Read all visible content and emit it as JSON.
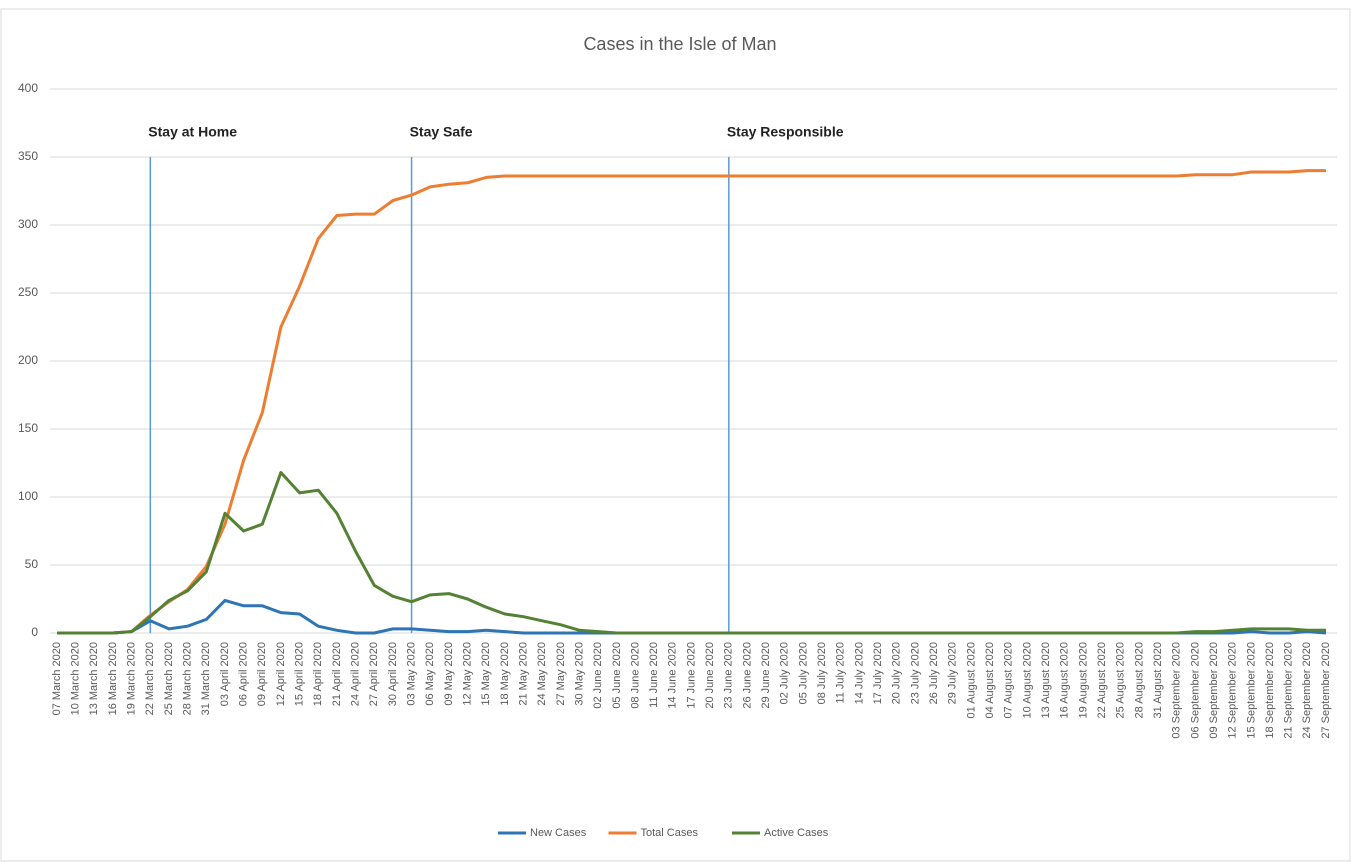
{
  "chart_data": {
    "type": "line",
    "title": "Cases in the Isle of Man",
    "categories": [
      "07 March 2020",
      "10 March 2020",
      "13 March 2020",
      "16 March 2020",
      "19 March 2020",
      "22 March 2020",
      "25 March 2020",
      "28 March 2020",
      "31 March 2020",
      "03 April 2020",
      "06 April 2020",
      "09 April 2020",
      "12 April 2020",
      "15 April 2020",
      "18 April 2020",
      "21 April 2020",
      "24 April 2020",
      "27 April 2020",
      "30 April 2020",
      "03 May 2020",
      "06 May 2020",
      "09 May 2020",
      "12 May 2020",
      "15 May 2020",
      "18 May 2020",
      "21 May 2020",
      "24 May 2020",
      "27 May 2020",
      "30 May 2020",
      "02 June 2020",
      "05 June 2020",
      "08 June 2020",
      "11 June 2020",
      "14 June 2020",
      "17 June 2020",
      "20 June 2020",
      "23 June 2020",
      "26 June 2020",
      "29 June 2020",
      "02 July 2020",
      "05 July 2020",
      "08 July 2020",
      "11 July 2020",
      "14 July 2020",
      "17 July 2020",
      "20 July 2020",
      "23 July 2020",
      "26 July 2020",
      "29 July 2020",
      "01 August 2020",
      "04 August 2020",
      "07 August 2020",
      "10 August 2020",
      "13 August 2020",
      "16 August 2020",
      "19 August 2020",
      "22 August 2020",
      "25 August 2020",
      "28 August 2020",
      "31 August 2020",
      "03 September 2020",
      "06 September 2020",
      "09 September 2020",
      "12 September 2020",
      "15 September 2020",
      "18 September 2020",
      "21 September 2020",
      "24 September 2020",
      "27 September 2020"
    ],
    "series": [
      {
        "name": "New Cases",
        "color": "#2e75b6",
        "values": [
          0,
          0,
          0,
          0,
          1,
          9,
          3,
          5,
          10,
          24,
          20,
          20,
          15,
          14,
          5,
          2,
          0,
          0,
          3,
          3,
          2,
          1,
          1,
          2,
          1,
          0,
          0,
          0,
          0,
          0,
          0,
          0,
          0,
          0,
          0,
          0,
          0,
          0,
          0,
          0,
          0,
          0,
          0,
          0,
          0,
          0,
          0,
          0,
          0,
          0,
          0,
          0,
          0,
          0,
          0,
          0,
          0,
          0,
          0,
          0,
          0,
          0,
          0,
          0,
          1,
          0,
          0,
          1,
          0
        ]
      },
      {
        "name": "Total Cases",
        "color": "#ed7d31",
        "values": [
          0,
          0,
          0,
          0,
          1,
          13,
          23,
          32,
          49,
          80,
          127,
          162,
          225,
          255,
          290,
          307,
          308,
          308,
          318,
          322,
          328,
          330,
          331,
          335,
          336,
          336,
          336,
          336,
          336,
          336,
          336,
          336,
          336,
          336,
          336,
          336,
          336,
          336,
          336,
          336,
          336,
          336,
          336,
          336,
          336,
          336,
          336,
          336,
          336,
          336,
          336,
          336,
          336,
          336,
          336,
          336,
          336,
          336,
          336,
          336,
          336,
          337,
          337,
          337,
          339,
          339,
          339,
          340,
          340
        ]
      },
      {
        "name": "Active Cases",
        "color": "#548235",
        "values": [
          0,
          0,
          0,
          0,
          1,
          12,
          24,
          31,
          45,
          88,
          75,
          80,
          118,
          103,
          105,
          88,
          60,
          35,
          27,
          23,
          28,
          29,
          25,
          19,
          14,
          12,
          9,
          6,
          2,
          1,
          0,
          0,
          0,
          0,
          0,
          0,
          0,
          0,
          0,
          0,
          0,
          0,
          0,
          0,
          0,
          0,
          0,
          0,
          0,
          0,
          0,
          0,
          0,
          0,
          0,
          0,
          0,
          0,
          0,
          0,
          0,
          1,
          1,
          2,
          3,
          3,
          3,
          2,
          2
        ]
      }
    ],
    "ylim": [
      0,
      400
    ],
    "yticks": [
      0,
      50,
      100,
      150,
      200,
      250,
      300,
      350,
      400
    ],
    "grid": true,
    "legend": "bottom",
    "annotations": [
      {
        "text": "Stay at Home",
        "x": "22 March 2020"
      },
      {
        "text": "Stay Safe",
        "x": "03 May 2020"
      },
      {
        "text": "Stay Responsible",
        "x": "23 June 2020"
      }
    ]
  }
}
